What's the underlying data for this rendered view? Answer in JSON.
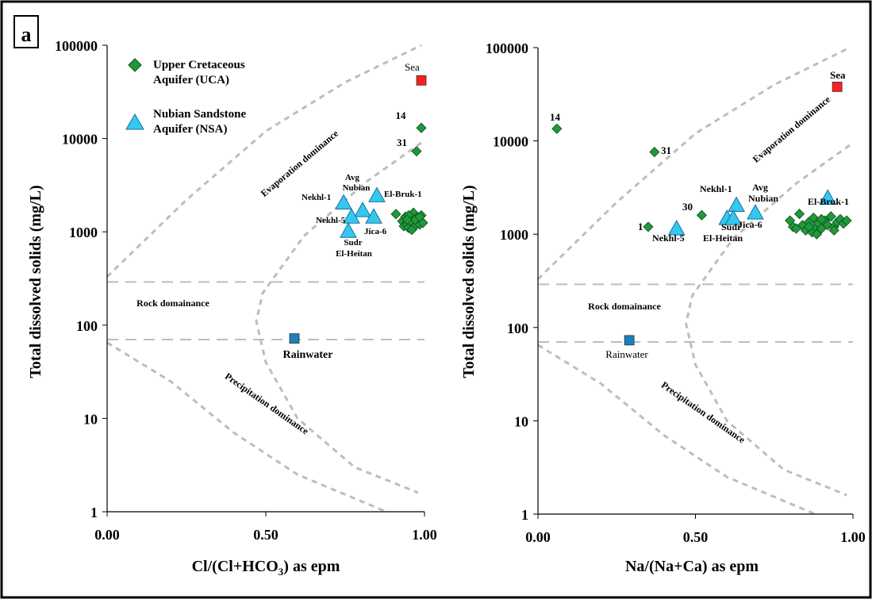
{
  "panel_label": "a",
  "chart_data": [
    {
      "type": "scatter",
      "xlabel": "Cl/(Cl+HCO3) as epm",
      "xlabel_main": "Cl/(Cl+HCO",
      "xlabel_sub": "3",
      "xlabel_tail": ") as epm",
      "ylabel": "Total dissolved solids (mg/L)",
      "xlim": [
        0,
        1
      ],
      "ylim": [
        1,
        100000
      ],
      "yscale": "log",
      "x_ticks": [
        "0.00",
        "0.50",
        "1.00"
      ],
      "y_ticks": [
        "1",
        "10",
        "100",
        "1000",
        "10000",
        "100000"
      ],
      "grid": false,
      "legend_position": "top-left",
      "legend": [
        {
          "symbol": "diamond",
          "color": "#1f9a3a",
          "label_lines": [
            "Upper Cretaceous",
            "Aquifer (UCA)"
          ]
        },
        {
          "symbol": "triangle",
          "color": "#33c8f0",
          "label_lines": [
            "Nubian Sandstone",
            "Aquifer (NSA)"
          ]
        }
      ],
      "zone_labels": [
        "Evaporation dominance",
        "Rock domainance",
        "Precipitation dominance"
      ],
      "series": [
        {
          "name": "Upper Cretaceous Aquifer (UCA)",
          "marker": "diamond",
          "color": "#1f9a3a",
          "points": [
            [
              0.99,
              13000,
              "14"
            ],
            [
              0.975,
              7300,
              "31"
            ],
            [
              0.91,
              1550
            ],
            [
              0.93,
              1300
            ],
            [
              0.935,
              1150
            ],
            [
              0.94,
              1450
            ],
            [
              0.945,
              1200
            ],
            [
              0.95,
              1100
            ],
            [
              0.955,
              1350
            ],
            [
              0.96,
              1250
            ],
            [
              0.965,
              1600
            ],
            [
              0.97,
              1150
            ],
            [
              0.975,
              1400
            ],
            [
              0.98,
              1300
            ],
            [
              0.985,
              1200
            ],
            [
              0.99,
              1500
            ],
            [
              0.995,
              1250
            ],
            [
              0.95,
              1500
            ],
            [
              0.96,
              1050
            ],
            [
              0.97,
              1350
            ],
            [
              0.985,
              1450
            ],
            [
              0.945,
              1350
            ]
          ]
        },
        {
          "name": "Nubian Sandstone Aquifer (NSA)",
          "marker": "triangle",
          "color": "#33c8f0",
          "points": [
            [
              0.745,
              2050,
              "Nekhl-1"
            ],
            [
              0.85,
              2450,
              "El-Bruk-1"
            ],
            [
              0.805,
              1700,
              "Avg Nubian"
            ],
            [
              0.77,
              1450,
              "Nekhl-5"
            ],
            [
              0.84,
              1450,
              "Jica-6"
            ],
            [
              0.76,
              1020,
              "Sudr El-Heitan"
            ]
          ]
        },
        {
          "name": "Sea",
          "marker": "square",
          "color": "#ff1f1f",
          "points": [
            [
              0.99,
              42000,
              "Sea"
            ]
          ]
        },
        {
          "name": "Rainwater",
          "marker": "square",
          "color": "#1b7fbd",
          "points": [
            [
              0.59,
              72,
              "Rainwater"
            ]
          ]
        }
      ],
      "point_labels": {
        "14": "14",
        "31": "31",
        "Nekhl-1": "Nekhl-1",
        "El-Bruk-1": "El-Bruk-1",
        "Avg": "Avg",
        "Nubian": "Nubian",
        "Nekhl-5": "Nekhl-5",
        "Jica-6": "Jica-6",
        "Sudr": "Sudr",
        "El-Heitan": "El-Heitan",
        "Sea": "Sea",
        "Rainwater": "Rainwater"
      }
    },
    {
      "type": "scatter",
      "xlabel": "Na/(Na+Ca) as epm",
      "ylabel": "Total dissolved solids (mg/L)",
      "xlim": [
        0,
        1
      ],
      "ylim": [
        1,
        100000
      ],
      "yscale": "log",
      "x_ticks": [
        "0.00",
        "0.50",
        "1.00"
      ],
      "y_ticks": [
        "1",
        "10",
        "100",
        "1000",
        "10000",
        "100000"
      ],
      "grid": false,
      "zone_labels": [
        "Evaporation dominance",
        "Rock domainance",
        "Precipitation dominance"
      ],
      "series": [
        {
          "name": "Upper Cretaceous Aquifer (UCA)",
          "marker": "diamond",
          "color": "#1f9a3a",
          "points": [
            [
              0.06,
              13500,
              "14"
            ],
            [
              0.37,
              7600,
              "31"
            ],
            [
              0.35,
              1200,
              "1"
            ],
            [
              0.52,
              1600,
              "30"
            ],
            [
              0.8,
              1400
            ],
            [
              0.81,
              1200
            ],
            [
              0.82,
              1150
            ],
            [
              0.83,
              1650
            ],
            [
              0.84,
              1250
            ],
            [
              0.85,
              1100
            ],
            [
              0.86,
              1350
            ],
            [
              0.87,
              1050
            ],
            [
              0.875,
              1500
            ],
            [
              0.88,
              1200
            ],
            [
              0.885,
              1000
            ],
            [
              0.89,
              1300
            ],
            [
              0.9,
              1150
            ],
            [
              0.91,
              1400
            ],
            [
              0.92,
              1250
            ],
            [
              0.93,
              1550
            ],
            [
              0.94,
              1200
            ],
            [
              0.95,
              1350
            ],
            [
              0.96,
              1450
            ],
            [
              0.97,
              1300
            ],
            [
              0.98,
              1400
            ],
            [
              0.86,
              1200
            ],
            [
              0.9,
              1450
            ],
            [
              0.94,
              1100
            ]
          ]
        },
        {
          "name": "Nubian Sandstone Aquifer (NSA)",
          "marker": "triangle",
          "color": "#33c8f0",
          "points": [
            [
              0.63,
              2050,
              "Nekhl-1"
            ],
            [
              0.69,
              1700,
              "Avg Nubian"
            ],
            [
              0.92,
              2450,
              "El-Bruk-1"
            ],
            [
              0.44,
              1150,
              "Nekhl-5"
            ],
            [
              0.6,
              1480,
              "Sudr El-Heitan"
            ],
            [
              0.62,
              1480,
              "Jica-6"
            ]
          ]
        },
        {
          "name": "Sea",
          "marker": "square",
          "color": "#ff1f1f",
          "points": [
            [
              0.95,
              38000,
              "Sea"
            ]
          ]
        },
        {
          "name": "Rainwater",
          "marker": "square",
          "color": "#1b7fbd",
          "points": [
            [
              0.29,
              73,
              "Rainwater"
            ]
          ]
        }
      ],
      "point_labels": {
        "14": "14",
        "31": "31",
        "1": "1",
        "30": "30",
        "Nekhl-1": "Nekhl-1",
        "Avg": "Avg",
        "Nubian": "Nubian",
        "El-Bruk-1": "El-Bruk-1",
        "Nekhl-5": "Nekhl-5",
        "Sudr": "Sudr",
        "El-Heitan": "El-Heitan",
        "Jica-6": "Jica-6",
        "Sea": "Sea",
        "Rainwater": "Rainwater"
      }
    }
  ]
}
